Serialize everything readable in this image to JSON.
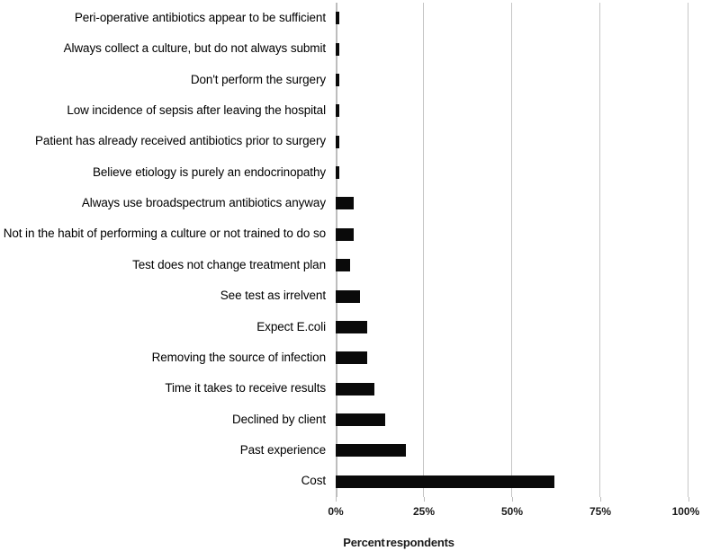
{
  "chart_data": {
    "type": "bar",
    "orientation": "horizontal",
    "title": "",
    "xlabel": "Percent respondents",
    "ylabel": "",
    "xlim": [
      0,
      100
    ],
    "grid": true,
    "legend": "none",
    "bar_color": "#0a0a0a",
    "gridline_color": "#c6c6c6",
    "axis_line_color": "#bdbdbd",
    "x_ticks": [
      {
        "label": "0%",
        "value": 0
      },
      {
        "label": "25%",
        "value": 25
      },
      {
        "label": "50%",
        "value": 50
      },
      {
        "label": "75%",
        "value": 75
      },
      {
        "label": "100%",
        "value": 100
      }
    ],
    "categories": [
      "Peri-operative antibiotics appear to be sufficient",
      "Always collect a culture, but do not always submit",
      "Don't perform the surgery",
      "Low incidence of sepsis after leaving the hospital",
      "Patient has already received antibiotics prior to surgery",
      "Believe etiology is purely an endocrinopathy",
      "Always use broadspectrum antibiotics anyway",
      "Not in the habit of performing a culture or not trained to do so",
      "Test does not change treatment plan",
      "See test as irrelvent",
      "Expect E.coli",
      "Removing the source of infection",
      "Time it takes to receive results",
      "Declined by client",
      "Past experience",
      "Cost"
    ],
    "values": [
      1,
      1,
      1,
      1,
      1,
      1,
      5,
      5,
      4,
      7,
      9,
      9,
      11,
      14,
      20,
      62
    ]
  }
}
